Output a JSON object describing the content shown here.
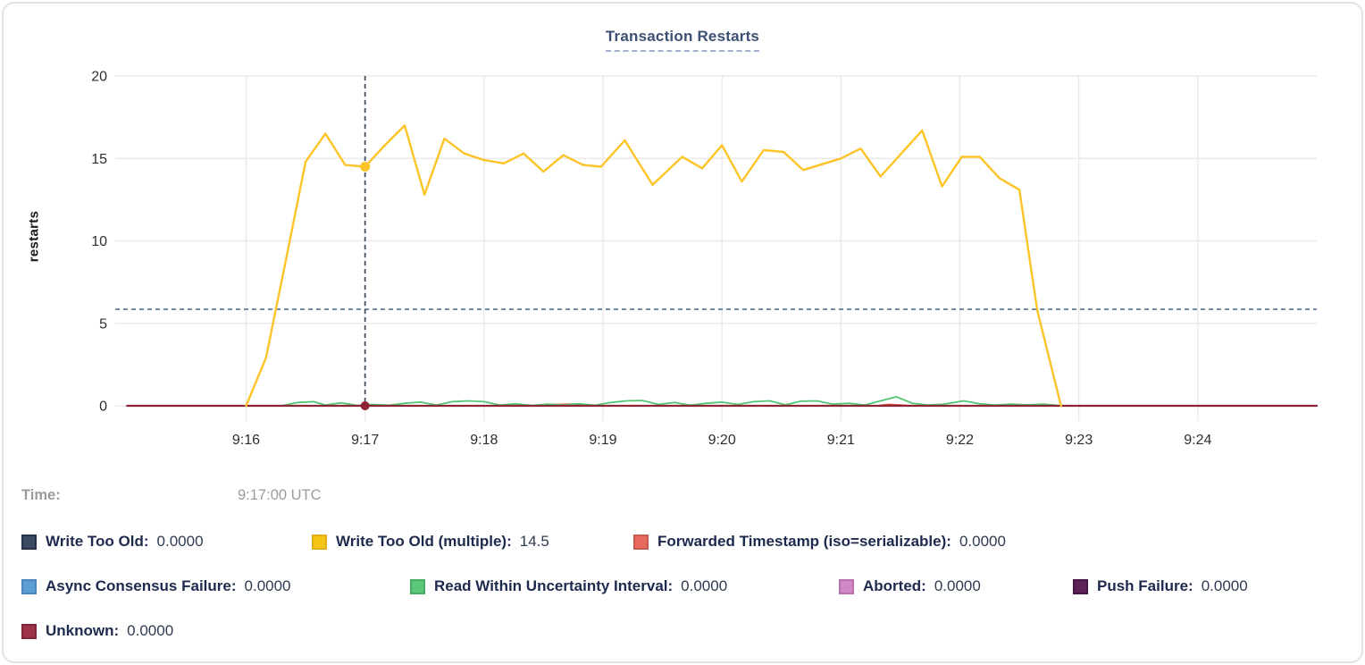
{
  "chart_data": {
    "type": "line",
    "title": "Transaction Restarts",
    "xlabel": "",
    "ylabel": "restarts",
    "ylim": [
      0,
      20
    ],
    "y_ticks": [
      0,
      5,
      10,
      15,
      20
    ],
    "x_domain_seconds_after_9am": [
      894,
      1500
    ],
    "x_ticks": [
      {
        "t": 960,
        "label": "9:16"
      },
      {
        "t": 1020,
        "label": "9:17"
      },
      {
        "t": 1080,
        "label": "9:18"
      },
      {
        "t": 1140,
        "label": "9:19"
      },
      {
        "t": 1200,
        "label": "9:20"
      },
      {
        "t": 1260,
        "label": "9:21"
      },
      {
        "t": 1320,
        "label": "9:22"
      },
      {
        "t": 1380,
        "label": "9:23"
      },
      {
        "t": 1440,
        "label": "9:24"
      }
    ],
    "grid": true,
    "legend_position": "bottom",
    "hover": {
      "time_seconds_after_9am": 1020,
      "time_label": "9:17:00 UTC",
      "dashed_hline_value": 5.85,
      "dots": [
        {
          "series": "Write Too Old (multiple)",
          "value": 14.5,
          "color": "#FCC426"
        },
        {
          "series": "Unknown",
          "value": 0,
          "color": "#8F2435"
        }
      ]
    },
    "series": [
      {
        "name": "Write Too Old",
        "color": "#3C4A63",
        "values": [
          [
            900,
            0
          ],
          [
            1500,
            0
          ]
        ]
      },
      {
        "name": "Async Consensus Failure",
        "color": "#5C9FD6",
        "values": [
          [
            900,
            0
          ],
          [
            1500,
            0
          ]
        ]
      },
      {
        "name": "Aborted",
        "color": "#D287C7",
        "values": [
          [
            900,
            0
          ],
          [
            1500,
            0
          ]
        ]
      },
      {
        "name": "Push Failure",
        "color": "#5E2159",
        "values": [
          [
            900,
            0
          ],
          [
            1500,
            0
          ]
        ]
      },
      {
        "name": "Forwarded Timestamp (iso=serializable)",
        "color": "#DD4840",
        "values": [
          [
            900,
            0
          ],
          [
            1110,
            0
          ],
          [
            1116,
            0.07
          ],
          [
            1124,
            0.1
          ],
          [
            1132,
            0.06
          ],
          [
            1140,
            0
          ],
          [
            1278,
            0
          ],
          [
            1284,
            0.08
          ],
          [
            1290,
            0.05
          ],
          [
            1296,
            0
          ],
          [
            1358,
            0
          ],
          [
            1363,
            0.06
          ],
          [
            1368,
            0
          ],
          [
            1500,
            0
          ]
        ]
      },
      {
        "name": "Read Within Uncertainty Interval",
        "color": "#53C573",
        "values": [
          [
            978,
            0
          ],
          [
            986,
            0.2
          ],
          [
            994,
            0.25
          ],
          [
            1000,
            0.05
          ],
          [
            1008,
            0.18
          ],
          [
            1016,
            0.02
          ],
          [
            1024,
            0.08
          ],
          [
            1032,
            0.03
          ],
          [
            1040,
            0.15
          ],
          [
            1048,
            0.22
          ],
          [
            1056,
            0.05
          ],
          [
            1064,
            0.25
          ],
          [
            1072,
            0.3
          ],
          [
            1080,
            0.25
          ],
          [
            1088,
            0.05
          ],
          [
            1096,
            0.12
          ],
          [
            1104,
            0.02
          ],
          [
            1112,
            0.1
          ],
          [
            1120,
            0.05
          ],
          [
            1128,
            0.12
          ],
          [
            1136,
            0.03
          ],
          [
            1144,
            0.2
          ],
          [
            1152,
            0.3
          ],
          [
            1160,
            0.32
          ],
          [
            1168,
            0.08
          ],
          [
            1176,
            0.2
          ],
          [
            1184,
            0.03
          ],
          [
            1192,
            0.15
          ],
          [
            1200,
            0.22
          ],
          [
            1208,
            0.08
          ],
          [
            1216,
            0.25
          ],
          [
            1224,
            0.3
          ],
          [
            1232,
            0.06
          ],
          [
            1240,
            0.28
          ],
          [
            1248,
            0.3
          ],
          [
            1256,
            0.1
          ],
          [
            1264,
            0.15
          ],
          [
            1272,
            0.05
          ],
          [
            1288,
            0.55
          ],
          [
            1296,
            0.15
          ],
          [
            1304,
            0.05
          ],
          [
            1312,
            0.1
          ],
          [
            1322,
            0.3
          ],
          [
            1330,
            0.12
          ],
          [
            1338,
            0.05
          ],
          [
            1346,
            0.1
          ],
          [
            1354,
            0.06
          ],
          [
            1362,
            0.1
          ],
          [
            1372,
            0
          ]
        ]
      },
      {
        "name": "Unknown",
        "color": "#8F2435",
        "values": [
          [
            900,
            0
          ],
          [
            1500,
            0
          ]
        ]
      },
      {
        "name": "Write Too Old (multiple)",
        "color": "#FCC426",
        "values": [
          [
            960,
            0
          ],
          [
            970,
            2.9
          ],
          [
            980,
            8.8
          ],
          [
            990,
            14.8
          ],
          [
            1000,
            16.5
          ],
          [
            1010,
            14.6
          ],
          [
            1020,
            14.5
          ],
          [
            1030,
            15.8
          ],
          [
            1040,
            17
          ],
          [
            1050,
            12.8
          ],
          [
            1060,
            16.2
          ],
          [
            1070,
            15.3
          ],
          [
            1080,
            14.9
          ],
          [
            1090,
            14.7
          ],
          [
            1100,
            15.3
          ],
          [
            1110,
            14.2
          ],
          [
            1120,
            15.2
          ],
          [
            1130,
            14.6
          ],
          [
            1139,
            14.5
          ],
          [
            1151,
            16.1
          ],
          [
            1165,
            13.4
          ],
          [
            1180,
            15.1
          ],
          [
            1190,
            14.4
          ],
          [
            1200,
            15.8
          ],
          [
            1210,
            13.6
          ],
          [
            1221,
            15.5
          ],
          [
            1231,
            15.4
          ],
          [
            1241,
            14.3
          ],
          [
            1260,
            15
          ],
          [
            1270,
            15.6
          ],
          [
            1280,
            13.9
          ],
          [
            1301,
            16.7
          ],
          [
            1311,
            13.3
          ],
          [
            1321,
            15.1
          ],
          [
            1330,
            15.1
          ],
          [
            1340,
            13.8
          ],
          [
            1350,
            13.1
          ],
          [
            1359,
            5.8
          ],
          [
            1371,
            0
          ]
        ]
      }
    ]
  },
  "header": {
    "title": "Transaction Restarts"
  },
  "axis": {
    "y_label": "restarts"
  },
  "tooltip": {
    "time_label": "Time:",
    "time_value": "9:17:00 UTC"
  },
  "legend": {
    "rows": [
      [
        {
          "label": "Write Too Old:",
          "value": "0.0000",
          "color": "#3C4A63",
          "border": "#273349"
        },
        {
          "label": "Write Too Old (multiple):",
          "value": "14.5",
          "color": "#F5C515",
          "border": "#E0AD1B"
        },
        {
          "label": "Forwarded Timestamp (iso=serializable):",
          "value": "0.0000",
          "color": "#E76A5E",
          "border": "#C95A4F"
        }
      ],
      [
        {
          "label": "Async Consensus Failure:",
          "value": "0.0000",
          "color": "#5C9FD6",
          "border": "#4B85BC"
        },
        {
          "label": "Read Within Uncertainty Interval:",
          "value": "0.0000",
          "color": "#5BC879",
          "border": "#48AD63"
        },
        {
          "label": "Aborted:",
          "value": "0.0000",
          "color": "#D287C7",
          "border": "#B870AE"
        },
        {
          "label": "Push Failure:",
          "value": "0.0000",
          "color": "#5E2159",
          "border": "#471645"
        }
      ],
      [
        {
          "label": "Unknown:",
          "value": "0.0000",
          "color": "#9E3448",
          "border": "#7E2538"
        }
      ]
    ]
  },
  "colors": {
    "gridline": "#eaeaea",
    "crosshair_vertical": "#3A4A5C",
    "crosshair_horizontal": "#527195",
    "title": "#3c5174"
  }
}
